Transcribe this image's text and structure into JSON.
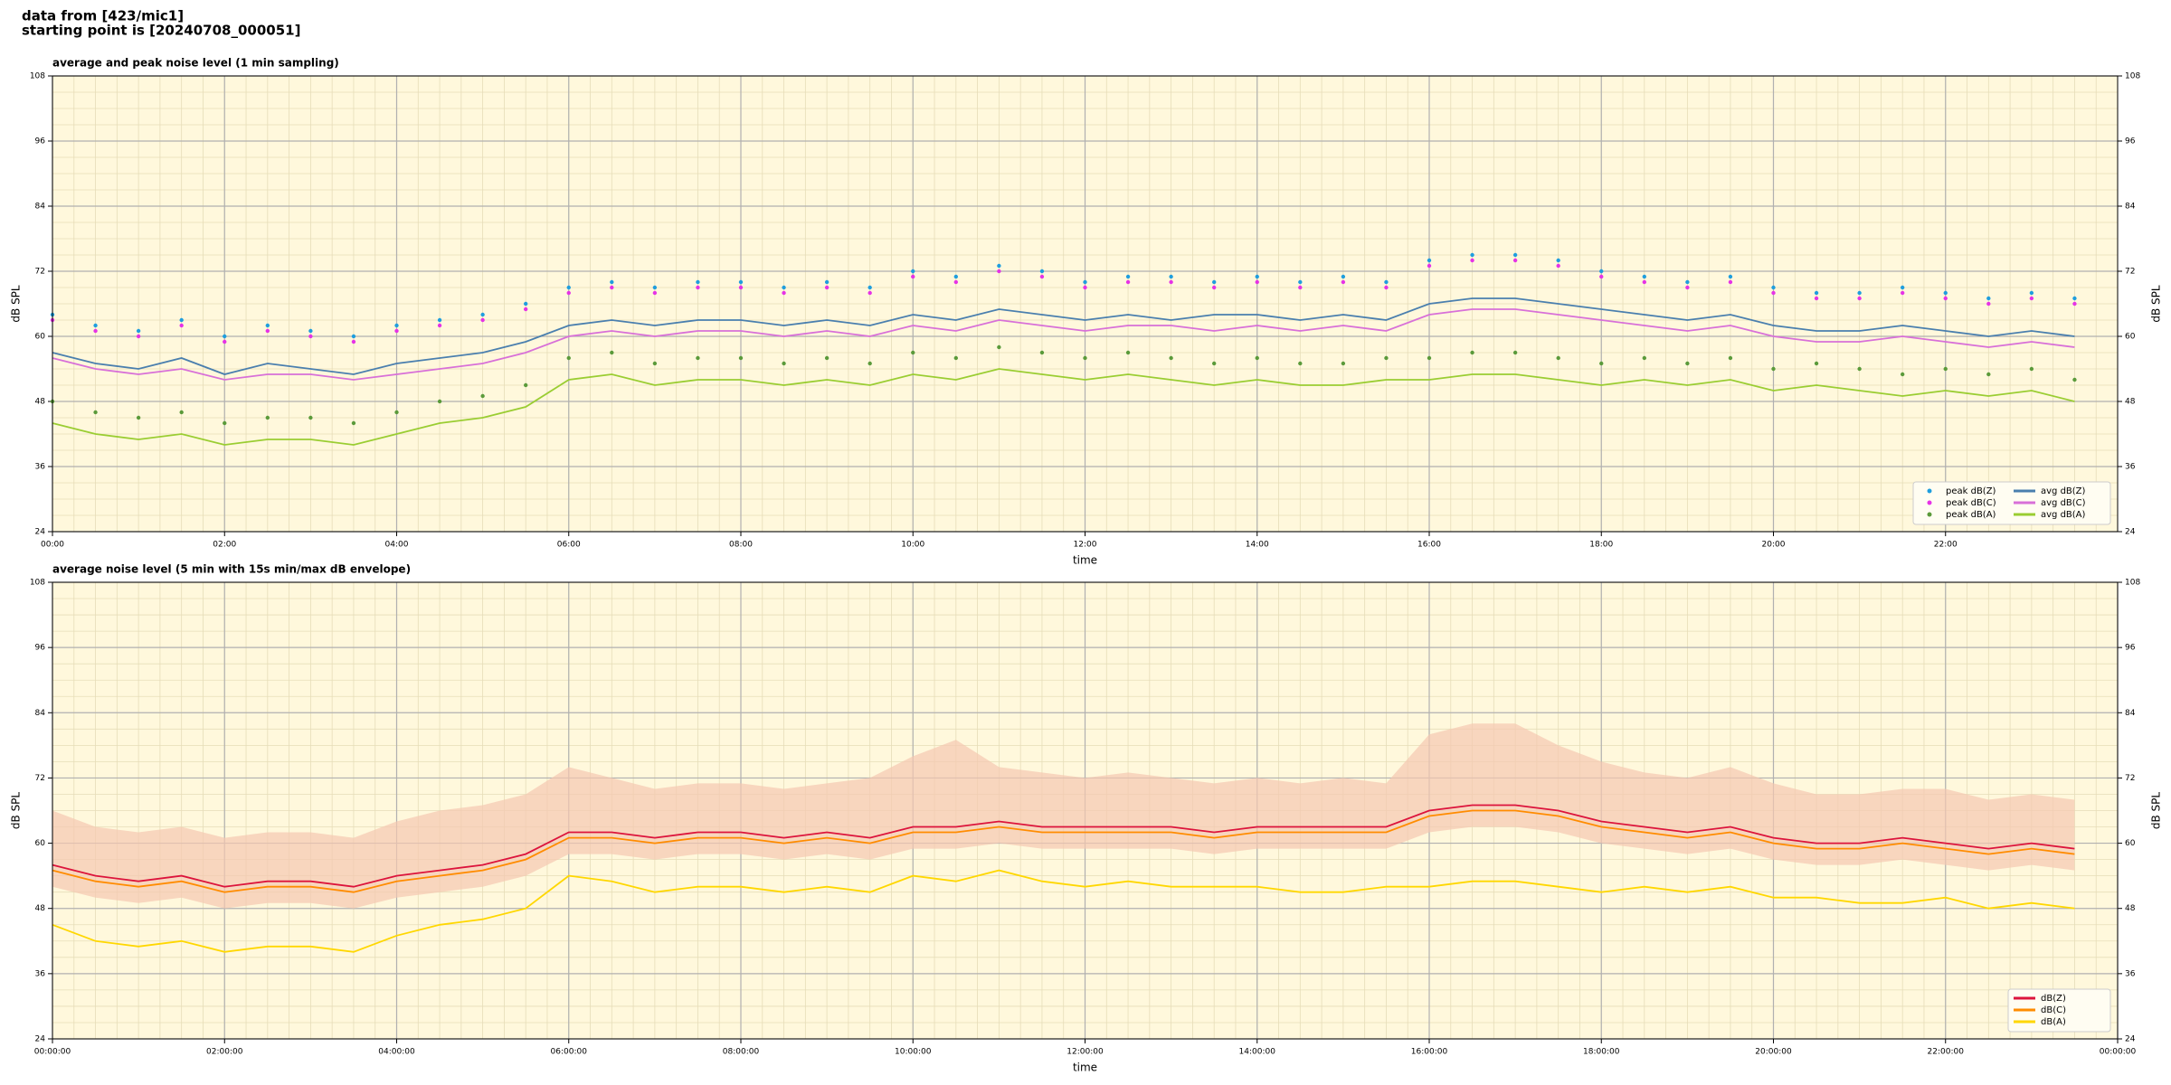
{
  "header": {
    "line1": "data from [423/mic1]",
    "line2": "starting point is [20240708_000051]"
  },
  "chart_data": [
    {
      "type": "line",
      "title": "average and peak noise level (1 min sampling)",
      "xlabel": "time",
      "ylabel": "dB SPL",
      "background": "#fff8dc",
      "grid": true,
      "minor_grid": true,
      "legend": "lower right",
      "legend_columns": 2,
      "xlim": [
        0,
        24
      ],
      "ylim": [
        24,
        108
      ],
      "yticks": [
        24,
        36,
        48,
        60,
        72,
        84,
        96,
        108
      ],
      "xticks": [
        {
          "value": 0,
          "label": "00:00"
        },
        {
          "value": 2,
          "label": "02:00"
        },
        {
          "value": 4,
          "label": "04:00"
        },
        {
          "value": 6,
          "label": "06:00"
        },
        {
          "value": 8,
          "label": "08:00"
        },
        {
          "value": 10,
          "label": "10:00"
        },
        {
          "value": 12,
          "label": "12:00"
        },
        {
          "value": 14,
          "label": "14:00"
        },
        {
          "value": 16,
          "label": "16:00"
        },
        {
          "value": 18,
          "label": "18:00"
        },
        {
          "value": 20,
          "label": "20:00"
        },
        {
          "value": 22,
          "label": "22:00"
        }
      ],
      "x": [
        0,
        0.5,
        1,
        1.5,
        2,
        2.5,
        3,
        3.5,
        4,
        4.5,
        5,
        5.5,
        6,
        6.5,
        7,
        7.5,
        8,
        8.5,
        9,
        9.5,
        10,
        10.5,
        11,
        11.5,
        12,
        12.5,
        13,
        13.5,
        14,
        14.5,
        15,
        15.5,
        16,
        16.5,
        17,
        17.5,
        18,
        18.5,
        19,
        19.5,
        20,
        20.5,
        21,
        21.5,
        22,
        22.5,
        23,
        23.5
      ],
      "series": [
        {
          "name": "peak dB(Z)",
          "style": "points",
          "color": "#1f9ede",
          "values": [
            64,
            62,
            61,
            63,
            60,
            62,
            61,
            60,
            62,
            63,
            64,
            66,
            69,
            70,
            69,
            70,
            70,
            69,
            70,
            69,
            72,
            71,
            73,
            72,
            70,
            71,
            71,
            70,
            71,
            70,
            71,
            70,
            74,
            75,
            75,
            74,
            72,
            71,
            70,
            71,
            69,
            68,
            68,
            69,
            68,
            67,
            68,
            67
          ]
        },
        {
          "name": "peak dB(C)",
          "style": "points",
          "color": "#e632e6",
          "values": [
            63,
            61,
            60,
            62,
            59,
            61,
            60,
            59,
            61,
            62,
            63,
            65,
            68,
            69,
            68,
            69,
            69,
            68,
            69,
            68,
            71,
            70,
            72,
            71,
            69,
            70,
            70,
            69,
            70,
            69,
            70,
            69,
            73,
            74,
            74,
            73,
            71,
            70,
            69,
            70,
            68,
            67,
            67,
            68,
            67,
            66,
            67,
            66
          ]
        },
        {
          "name": "peak dB(A)",
          "style": "points",
          "color": "#5a9a3a",
          "values": [
            48,
            46,
            45,
            46,
            44,
            45,
            45,
            44,
            46,
            48,
            49,
            51,
            56,
            57,
            55,
            56,
            56,
            55,
            56,
            55,
            57,
            56,
            58,
            57,
            56,
            57,
            56,
            55,
            56,
            55,
            55,
            56,
            56,
            57,
            57,
            56,
            55,
            56,
            55,
            56,
            54,
            55,
            54,
            53,
            54,
            53,
            54,
            52
          ]
        },
        {
          "name": "avg dB(Z)",
          "style": "line",
          "color": "#4a7fae",
          "values": [
            57,
            55,
            54,
            56,
            53,
            55,
            54,
            53,
            55,
            56,
            57,
            59,
            62,
            63,
            62,
            63,
            63,
            62,
            63,
            62,
            64,
            63,
            65,
            64,
            63,
            64,
            63,
            64,
            64,
            63,
            64,
            63,
            66,
            67,
            67,
            66,
            65,
            64,
            63,
            64,
            62,
            61,
            61,
            62,
            61,
            60,
            61,
            60
          ]
        },
        {
          "name": "avg dB(C)",
          "style": "line",
          "color": "#d870d8",
          "values": [
            56,
            54,
            53,
            54,
            52,
            53,
            53,
            52,
            53,
            54,
            55,
            57,
            60,
            61,
            60,
            61,
            61,
            60,
            61,
            60,
            62,
            61,
            63,
            62,
            61,
            62,
            62,
            61,
            62,
            61,
            62,
            61,
            64,
            65,
            65,
            64,
            63,
            62,
            61,
            62,
            60,
            59,
            59,
            60,
            59,
            58,
            59,
            58
          ]
        },
        {
          "name": "avg dB(A)",
          "style": "line",
          "color": "#9acd32",
          "values": [
            44,
            42,
            41,
            42,
            40,
            41,
            41,
            40,
            42,
            44,
            45,
            47,
            52,
            53,
            51,
            52,
            52,
            51,
            52,
            51,
            53,
            52,
            54,
            53,
            52,
            53,
            52,
            51,
            52,
            51,
            51,
            52,
            52,
            53,
            53,
            52,
            51,
            52,
            51,
            52,
            50,
            51,
            50,
            49,
            50,
            49,
            50,
            48
          ]
        }
      ]
    },
    {
      "type": "line",
      "title": "average noise level (5 min with 15s min/max dB envelope)",
      "xlabel": "time",
      "ylabel": "dB SPL",
      "background": "#fff8dc",
      "grid": true,
      "minor_grid": true,
      "legend": "lower right",
      "legend_columns": 1,
      "xlim": [
        0,
        24
      ],
      "ylim": [
        24,
        108
      ],
      "yticks": [
        24,
        36,
        48,
        60,
        72,
        84,
        96,
        108
      ],
      "xticks": [
        {
          "value": 0,
          "label": "00:00:00"
        },
        {
          "value": 2,
          "label": "02:00:00"
        },
        {
          "value": 4,
          "label": "04:00:00"
        },
        {
          "value": 6,
          "label": "06:00:00"
        },
        {
          "value": 8,
          "label": "08:00:00"
        },
        {
          "value": 10,
          "label": "10:00:00"
        },
        {
          "value": 12,
          "label": "12:00:00"
        },
        {
          "value": 14,
          "label": "14:00:00"
        },
        {
          "value": 16,
          "label": "16:00:00"
        },
        {
          "value": 18,
          "label": "18:00:00"
        },
        {
          "value": 20,
          "label": "20:00:00"
        },
        {
          "value": 22,
          "label": "22:00:00"
        },
        {
          "value": 24,
          "label": "00:00:00"
        }
      ],
      "x": [
        0,
        0.5,
        1,
        1.5,
        2,
        2.5,
        3,
        3.5,
        4,
        4.5,
        5,
        5.5,
        6,
        6.5,
        7,
        7.5,
        8,
        8.5,
        9,
        9.5,
        10,
        10.5,
        11,
        11.5,
        12,
        12.5,
        13,
        13.5,
        14,
        14.5,
        15,
        15.5,
        16,
        16.5,
        17,
        17.5,
        18,
        18.5,
        19,
        19.5,
        20,
        20.5,
        21,
        21.5,
        22,
        22.5,
        23,
        23.5
      ],
      "envelope": {
        "color": "#f5c8b0",
        "low": [
          52,
          50,
          49,
          50,
          48,
          49,
          49,
          48,
          50,
          51,
          52,
          54,
          58,
          58,
          57,
          58,
          58,
          57,
          58,
          57,
          59,
          59,
          60,
          59,
          59,
          59,
          59,
          58,
          59,
          59,
          59,
          59,
          62,
          63,
          63,
          62,
          60,
          59,
          58,
          59,
          57,
          56,
          56,
          57,
          56,
          55,
          56,
          55
        ],
        "high": [
          66,
          63,
          62,
          63,
          61,
          62,
          62,
          61,
          64,
          66,
          67,
          69,
          74,
          72,
          70,
          71,
          71,
          70,
          71,
          72,
          76,
          79,
          74,
          73,
          72,
          73,
          72,
          71,
          72,
          71,
          72,
          71,
          80,
          82,
          82,
          78,
          75,
          73,
          72,
          74,
          71,
          69,
          69,
          70,
          70,
          68,
          69,
          68
        ]
      },
      "series": [
        {
          "name": "dB(Z)",
          "style": "line",
          "color": "#dc143c",
          "values": [
            56,
            54,
            53,
            54,
            52,
            53,
            53,
            52,
            54,
            55,
            56,
            58,
            62,
            62,
            61,
            62,
            62,
            61,
            62,
            61,
            63,
            63,
            64,
            63,
            63,
            63,
            63,
            62,
            63,
            63,
            63,
            63,
            66,
            67,
            67,
            66,
            64,
            63,
            62,
            63,
            61,
            60,
            60,
            61,
            60,
            59,
            60,
            59
          ]
        },
        {
          "name": "dB(C)",
          "style": "line",
          "color": "#ff8c00",
          "values": [
            55,
            53,
            52,
            53,
            51,
            52,
            52,
            51,
            53,
            54,
            55,
            57,
            61,
            61,
            60,
            61,
            61,
            60,
            61,
            60,
            62,
            62,
            63,
            62,
            62,
            62,
            62,
            61,
            62,
            62,
            62,
            62,
            65,
            66,
            66,
            65,
            63,
            62,
            61,
            62,
            60,
            59,
            59,
            60,
            59,
            58,
            59,
            58
          ]
        },
        {
          "name": "dB(A)",
          "style": "line",
          "color": "#ffd700",
          "values": [
            45,
            42,
            41,
            42,
            40,
            41,
            41,
            40,
            43,
            45,
            46,
            48,
            54,
            53,
            51,
            52,
            52,
            51,
            52,
            51,
            54,
            53,
            55,
            53,
            52,
            53,
            52,
            52,
            52,
            51,
            51,
            52,
            52,
            53,
            53,
            52,
            51,
            52,
            51,
            52,
            50,
            50,
            49,
            49,
            50,
            48,
            49,
            48
          ]
        }
      ]
    }
  ]
}
